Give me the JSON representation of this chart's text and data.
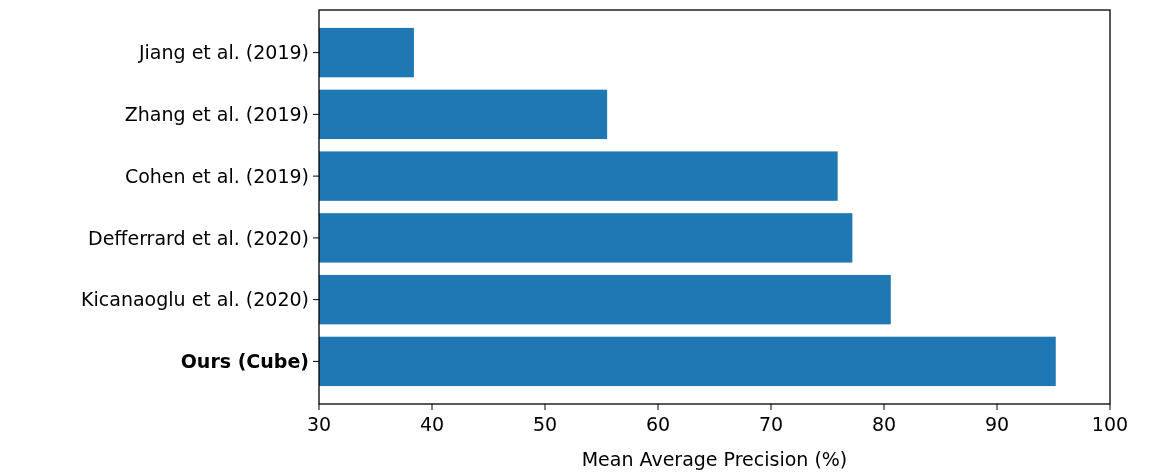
{
  "chart_data": {
    "type": "bar",
    "orientation": "horizontal",
    "categories": [
      "Jiang et al. (2019)",
      "Zhang et al. (2019)",
      "Cohen et al. (2019)",
      "Defferrard et al. (2020)",
      "Kicanaoglu et al. (2020)",
      "Ours (Cube)"
    ],
    "values": [
      38.4,
      55.5,
      75.9,
      77.2,
      80.6,
      95.2
    ],
    "color": "#1f77b4",
    "xlabel": "Mean Average Precision (%)",
    "xlim": [
      30,
      100
    ],
    "xticks": [
      30,
      40,
      50,
      60,
      70,
      80,
      90,
      100
    ]
  }
}
